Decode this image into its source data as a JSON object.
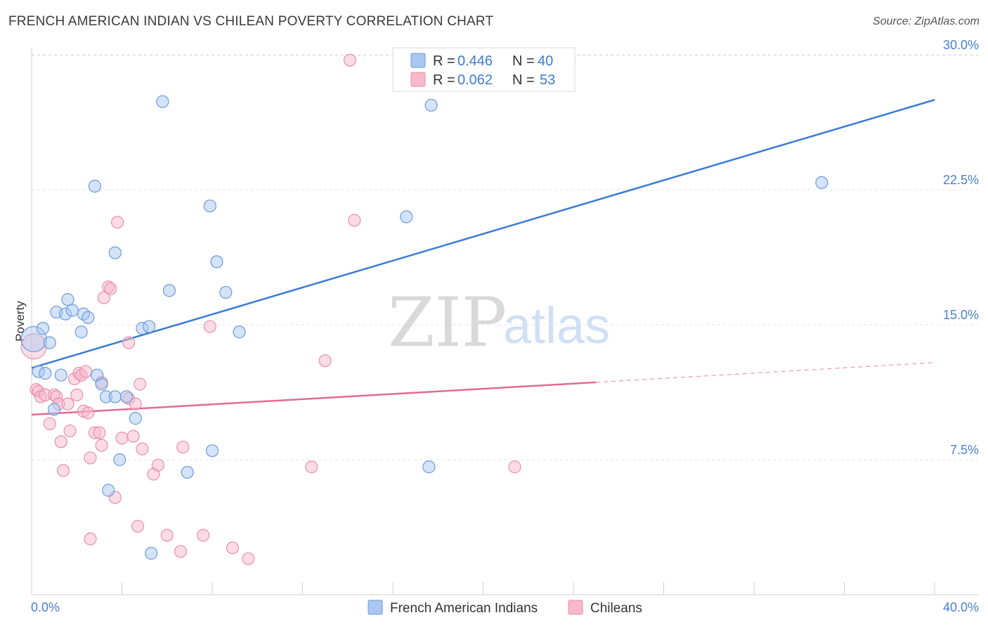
{
  "title": "FRENCH AMERICAN INDIAN VS CHILEAN POVERTY CORRELATION CHART",
  "source": "Source: ZipAtlas.com",
  "watermark": {
    "part1": "ZIP",
    "part2": "atlas"
  },
  "chart_data": {
    "type": "scatter",
    "ylabel": "Poverty",
    "xlim": [
      0,
      40
    ],
    "ylim": [
      0,
      32
    ],
    "x_tick_labels": {
      "left": "0.0%",
      "right": "40.0%"
    },
    "y_ticks": [
      {
        "value": 7.5,
        "label": "7.5%"
      },
      {
        "value": 15.0,
        "label": "15.0%"
      },
      {
        "value": 22.5,
        "label": "22.5%"
      },
      {
        "value": 30.0,
        "label": "30.0%"
      }
    ],
    "grid": "horizontal dashed",
    "legend_placement": "top-center",
    "colors": {
      "blue_fill": "#a9c7ef",
      "blue_stroke": "#6a9be0",
      "blue_line": "#3a7bd5",
      "pink_fill": "#f7b8cb",
      "pink_stroke": "#ea8fab",
      "pink_line": "#e36a93",
      "tick_text": "#4a7fd4"
    },
    "stats": [
      {
        "r_label": "R = ",
        "r": "0.446",
        "n_label": "N = ",
        "n": "40"
      },
      {
        "r_label": "R = ",
        "r": "0.062",
        "n_label": "N = ",
        "n": "53"
      }
    ],
    "series": [
      {
        "name": "French American Indians",
        "color": "#a9c7ef",
        "trend": {
          "x0": 0,
          "y0": 12.6,
          "x1": 40,
          "y1": 27.5
        },
        "points": [
          [
            0.1,
            14.2
          ],
          [
            0.3,
            12.4
          ],
          [
            0.5,
            14.8
          ],
          [
            0.6,
            12.3
          ],
          [
            0.8,
            14.0
          ],
          [
            1.0,
            10.3
          ],
          [
            1.1,
            15.7
          ],
          [
            1.3,
            12.2
          ],
          [
            1.5,
            15.6
          ],
          [
            1.6,
            16.4
          ],
          [
            1.8,
            15.8
          ],
          [
            2.2,
            14.6
          ],
          [
            2.3,
            15.6
          ],
          [
            2.5,
            15.4
          ],
          [
            2.9,
            12.2
          ],
          [
            2.8,
            22.7
          ],
          [
            3.1,
            11.7
          ],
          [
            3.3,
            11.0
          ],
          [
            3.4,
            5.8
          ],
          [
            3.7,
            11.0
          ],
          [
            3.7,
            19.0
          ],
          [
            3.9,
            7.5
          ],
          [
            4.2,
            11.0
          ],
          [
            4.6,
            9.8
          ],
          [
            4.9,
            14.8
          ],
          [
            5.2,
            14.9
          ],
          [
            5.8,
            27.4
          ],
          [
            6.1,
            16.9
          ],
          [
            6.9,
            6.8
          ],
          [
            7.9,
            21.6
          ],
          [
            8.0,
            8.0
          ],
          [
            8.2,
            18.5
          ],
          [
            8.6,
            16.8
          ],
          [
            9.2,
            14.6
          ],
          [
            5.3,
            2.3
          ],
          [
            16.6,
            21.0
          ],
          [
            17.6,
            7.1
          ],
          [
            17.7,
            27.2
          ],
          [
            23.8,
            29.6
          ],
          [
            35.0,
            22.9
          ]
        ]
      },
      {
        "name": "Chileans",
        "color": "#f7b8cb",
        "trend": {
          "x0": 0,
          "y0": 10.0,
          "x1": 25.0,
          "y1": 11.8,
          "dash_x1": 40,
          "dash_y1": 12.9
        },
        "points": [
          [
            0.1,
            13.8
          ],
          [
            0.2,
            11.4
          ],
          [
            0.3,
            11.3
          ],
          [
            0.4,
            11.0
          ],
          [
            0.6,
            11.1
          ],
          [
            0.8,
            9.5
          ],
          [
            1.0,
            11.1
          ],
          [
            1.1,
            11.0
          ],
          [
            1.2,
            10.6
          ],
          [
            1.3,
            8.5
          ],
          [
            1.4,
            6.9
          ],
          [
            1.6,
            10.6
          ],
          [
            1.7,
            9.1
          ],
          [
            1.9,
            12.0
          ],
          [
            2.0,
            11.1
          ],
          [
            2.1,
            12.3
          ],
          [
            2.2,
            12.2
          ],
          [
            2.3,
            10.2
          ],
          [
            2.4,
            12.4
          ],
          [
            2.5,
            10.1
          ],
          [
            2.6,
            7.6
          ],
          [
            2.6,
            3.1
          ],
          [
            2.8,
            9.0
          ],
          [
            3.0,
            9.0
          ],
          [
            3.1,
            11.8
          ],
          [
            3.1,
            8.3
          ],
          [
            3.2,
            16.5
          ],
          [
            3.4,
            17.1
          ],
          [
            3.5,
            17.0
          ],
          [
            3.7,
            5.4
          ],
          [
            3.8,
            20.7
          ],
          [
            4.0,
            8.7
          ],
          [
            4.3,
            10.9
          ],
          [
            4.3,
            14.0
          ],
          [
            4.5,
            8.8
          ],
          [
            4.6,
            10.6
          ],
          [
            4.7,
            3.8
          ],
          [
            4.8,
            11.7
          ],
          [
            4.9,
            8.1
          ],
          [
            5.4,
            6.7
          ],
          [
            5.6,
            7.2
          ],
          [
            6.0,
            3.3
          ],
          [
            6.6,
            2.4
          ],
          [
            6.7,
            8.2
          ],
          [
            7.6,
            3.3
          ],
          [
            7.9,
            14.9
          ],
          [
            8.9,
            2.6
          ],
          [
            9.6,
            2.0
          ],
          [
            12.4,
            7.1
          ],
          [
            13.0,
            13.0
          ],
          [
            14.1,
            29.7
          ],
          [
            14.3,
            20.8
          ],
          [
            21.4,
            7.1
          ]
        ]
      }
    ]
  }
}
